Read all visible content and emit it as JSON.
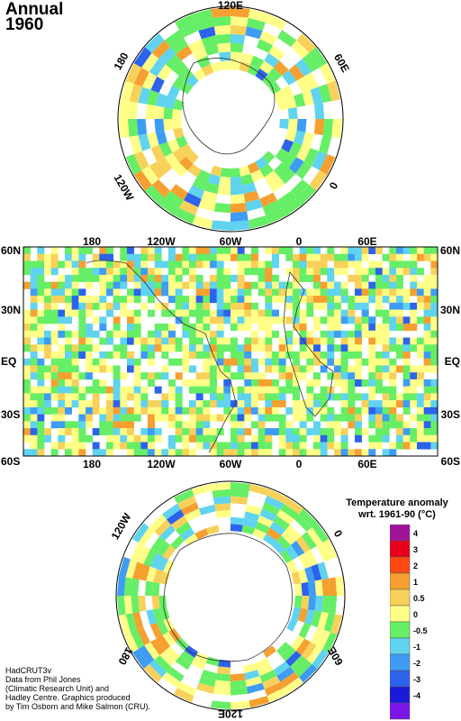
{
  "title": {
    "line1": "Annual",
    "line2": "1960"
  },
  "north_map": {
    "labels": {
      "top": "120E",
      "upper_left": "180",
      "upper_right": "60E",
      "lower_left": "120W",
      "right": "0"
    }
  },
  "grid_map": {
    "lon_labels": [
      "180",
      "120W",
      "60W",
      "0",
      "60E"
    ],
    "lat_labels_left": [
      "60N",
      "30N",
      "EQ",
      "30S",
      "60S"
    ],
    "lat_labels_right": [
      "60N",
      "30N",
      "EQ",
      "30S",
      "60S"
    ]
  },
  "south_map": {
    "labels": {
      "upper_left": "120W",
      "upper_right": "0",
      "lower_left": "180",
      "lower_right": "60E",
      "bottom": "120E"
    }
  },
  "legend": {
    "title_line1": "Temperature anomaly",
    "title_line2": "wrt. 1961-90  (°C)",
    "levels": [
      {
        "label": "4",
        "color": "#a0149a"
      },
      {
        "label": "3",
        "color": "#e8001a"
      },
      {
        "label": "2",
        "color": "#ff4a14"
      },
      {
        "label": "1",
        "color": "#f5a030"
      },
      {
        "label": "0.5",
        "color": "#f7d15a"
      },
      {
        "label": "0",
        "color": "#ffff88"
      },
      {
        "label": "-0.5",
        "color": "#66ee66"
      },
      {
        "label": "-1",
        "color": "#5fd3f0"
      },
      {
        "label": "-2",
        "color": "#3e9cf4"
      },
      {
        "label": "-3",
        "color": "#2c62ec"
      },
      {
        "label": "-4",
        "color": "#1a1ad8"
      },
      {
        "label": "",
        "color": "#7b16e8"
      }
    ]
  },
  "credits": [
    "HadCRUT3v",
    "Data from Phil Jones",
    "(Climatic Research Unit) and",
    "Hadley Centre.  Graphics produced",
    "by Tim Osborn and Mike Salmon (CRU)."
  ]
}
